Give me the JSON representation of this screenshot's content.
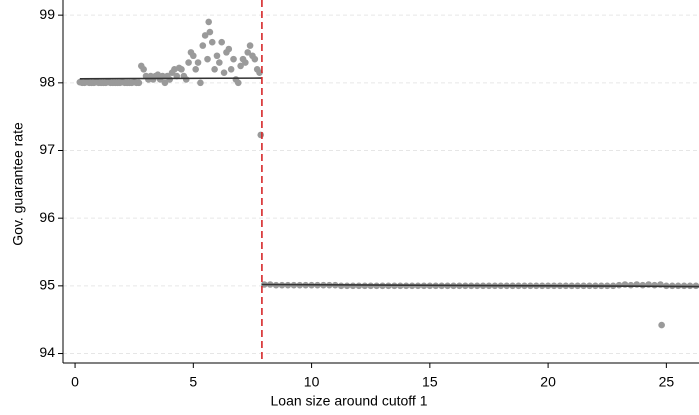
{
  "chart_data": {
    "type": "scatter",
    "x_label": "Loan size around cutoff 1",
    "y_label": "Gov. guarantee rate",
    "xlim": [
      -0.51,
      26.38
    ],
    "ylim": [
      93.86,
      99.15
    ],
    "xticks": [
      0,
      5,
      10,
      15,
      20,
      25
    ],
    "yticks": [
      94,
      95,
      96,
      97,
      98,
      99
    ],
    "grid": true,
    "vline": {
      "x": 7.9,
      "color": "#d62728",
      "dashed": true
    },
    "series": [
      {
        "mode": "markers",
        "color": "#9a9a9a",
        "x": [
          0.2,
          0.3,
          0.4,
          0.5,
          0.6,
          0.7,
          0.8,
          0.9,
          1.0,
          1.1,
          1.2,
          1.3,
          1.4,
          1.5,
          1.6,
          1.7,
          1.8,
          1.9,
          2.0,
          2.1,
          2.2,
          2.3,
          2.4,
          2.5,
          2.6,
          2.7,
          2.8,
          2.9,
          3.0,
          3.1,
          3.2,
          3.3,
          3.4,
          3.5,
          3.6,
          3.7,
          3.8,
          3.9,
          4.0,
          4.1,
          4.2,
          4.3,
          4.4,
          4.5,
          4.6,
          4.7,
          4.8,
          4.9,
          5.0,
          5.1,
          5.2,
          5.3,
          5.4,
          5.5,
          5.6,
          5.65,
          5.7,
          5.8,
          5.9,
          6.0,
          6.1,
          6.2,
          6.3,
          6.4,
          6.5,
          6.6,
          6.7,
          6.8,
          6.9,
          7.0,
          7.1,
          7.2,
          7.3,
          7.4,
          7.5,
          7.6,
          7.7,
          7.8,
          7.85
        ],
        "values": [
          98.01,
          98.0,
          98.0,
          98.01,
          98.0,
          98.0,
          98.0,
          98.01,
          98.0,
          98.0,
          98.0,
          98.0,
          98.01,
          98.0,
          98.0,
          98.0,
          98.0,
          98.0,
          98.01,
          98.0,
          98.0,
          98.0,
          98.0,
          98.01,
          98.0,
          98.0,
          98.25,
          98.2,
          98.1,
          98.05,
          98.1,
          98.05,
          98.1,
          98.12,
          98.05,
          98.1,
          98.0,
          98.1,
          98.05,
          98.15,
          98.2,
          98.1,
          98.22,
          98.2,
          98.1,
          98.05,
          98.3,
          98.45,
          98.4,
          98.2,
          98.3,
          98.0,
          98.55,
          98.7,
          98.35,
          98.9,
          98.75,
          98.6,
          98.2,
          98.4,
          98.3,
          98.6,
          98.15,
          98.45,
          98.5,
          98.2,
          98.35,
          98.05,
          98.0,
          98.25,
          98.35,
          98.3,
          98.45,
          98.55,
          98.4,
          98.35,
          98.2,
          98.15,
          97.23
        ]
      },
      {
        "mode": "markers",
        "color": "#9a9a9a",
        "x": [
          8,
          8.25,
          8.5,
          8.75,
          9,
          9.25,
          9.5,
          9.75,
          10,
          10.25,
          10.5,
          10.75,
          11,
          11.25,
          11.5,
          11.75,
          12,
          12.25,
          12.5,
          12.75,
          13,
          13.25,
          13.5,
          13.75,
          14,
          14.25,
          14.5,
          14.75,
          15,
          15.25,
          15.5,
          15.75,
          16,
          16.25,
          16.5,
          16.75,
          17,
          17.25,
          17.5,
          17.75,
          18,
          18.25,
          18.5,
          18.75,
          19,
          19.25,
          19.5,
          19.75,
          20,
          20.25,
          20.5,
          20.75,
          21,
          21.25,
          21.5,
          21.75,
          22,
          22.25,
          22.5,
          22.75,
          23,
          23.25,
          23.5,
          23.75,
          24,
          24.25,
          24.5,
          24.75,
          25,
          25.25,
          25.5,
          25.75,
          26,
          26.25,
          24.8
        ],
        "values": [
          95.02,
          95.02,
          95.01,
          95.01,
          95.01,
          95.01,
          95.01,
          95.01,
          95.01,
          95.01,
          95.01,
          95.01,
          95.01,
          95.0,
          95.0,
          95.0,
          95.0,
          95.0,
          95.0,
          95.0,
          95.0,
          95.0,
          95.0,
          95.0,
          95.0,
          95.0,
          95.0,
          95.0,
          95.0,
          95.0,
          95.0,
          95.0,
          95.0,
          95.0,
          95.0,
          95.0,
          95.0,
          95.0,
          95.0,
          95.0,
          95.0,
          95.0,
          95.0,
          95.0,
          95.0,
          95.0,
          95.0,
          95.0,
          95.0,
          95.0,
          95.0,
          95.0,
          95.0,
          95.0,
          95.0,
          95.0,
          95.0,
          95.0,
          95.0,
          95.0,
          95.01,
          95.02,
          95.01,
          95.02,
          95.01,
          95.02,
          95.01,
          95.02,
          95.0,
          95.0,
          95.0,
          95.0,
          95.0,
          95.0,
          94.42
        ]
      },
      {
        "mode": "line",
        "color": "#333333",
        "x": [
          0.2,
          7.9
        ],
        "values": [
          98.06,
          98.07
        ]
      },
      {
        "mode": "line",
        "color": "#333333",
        "x": [
          7.9,
          26.38
        ],
        "values": [
          95.02,
          94.99
        ]
      }
    ]
  }
}
